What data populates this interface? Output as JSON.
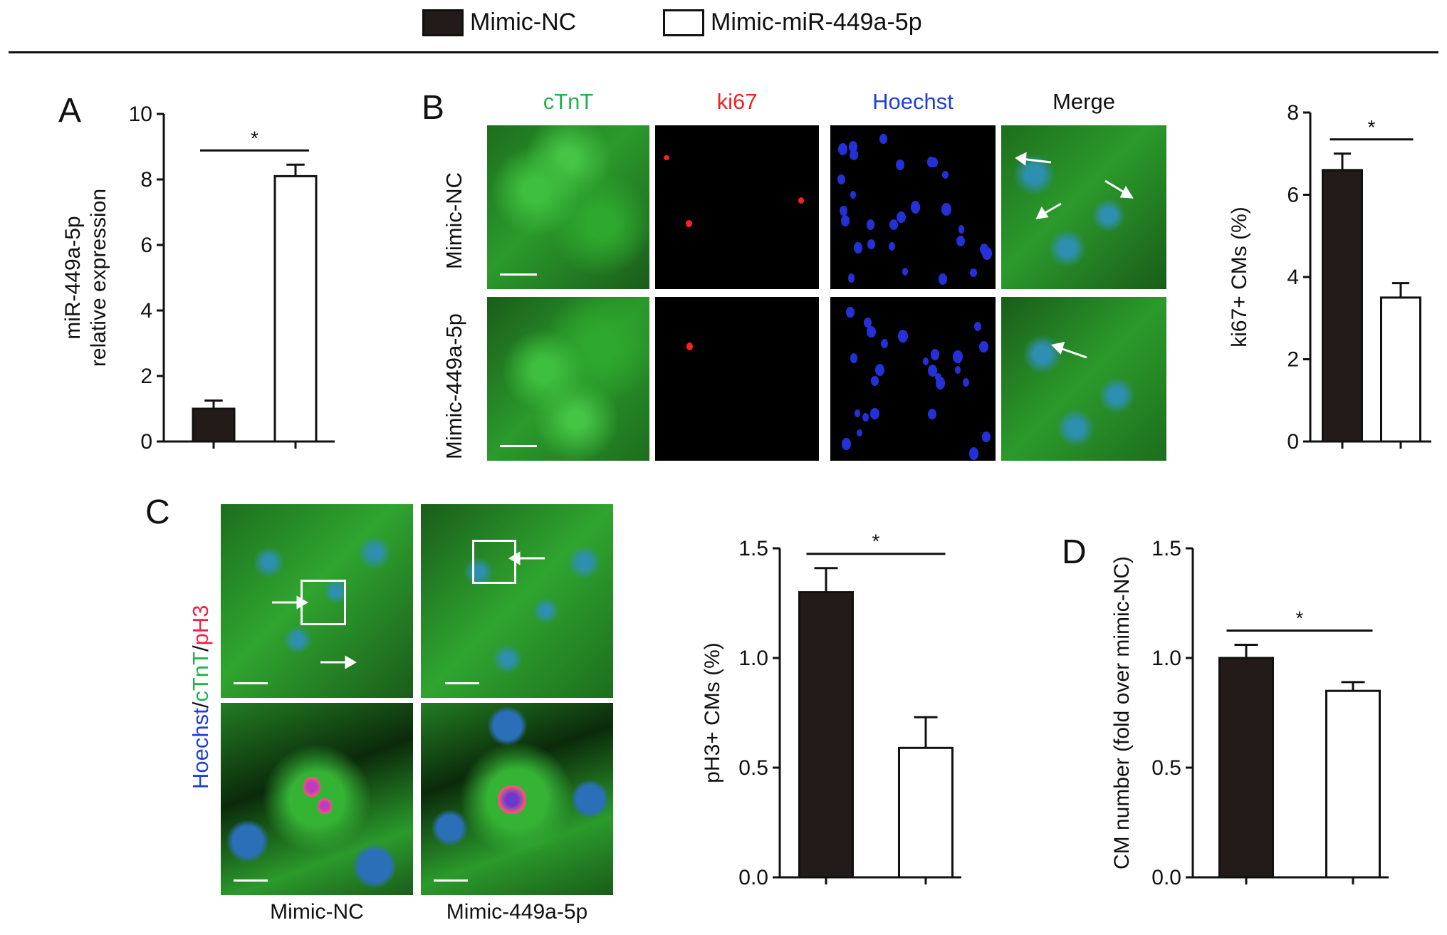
{
  "legend": {
    "items": [
      {
        "label": "Mimic-NC",
        "color": "#231a1a"
      },
      {
        "label": "Mimic-miR-449a-5p",
        "color": "#ffffff"
      }
    ]
  },
  "panels": {
    "A": {
      "letter": "A"
    },
    "B": {
      "letter": "B",
      "columns": [
        "cTnT",
        "ki67",
        "Hoechst",
        "Merge"
      ],
      "column_colors": [
        "#22b14c",
        "#ee2222",
        "#1f3fd6",
        "#111111"
      ],
      "rows": [
        "Mimic-NC",
        "Mimic-449a-5p"
      ]
    },
    "C": {
      "letter": "C",
      "stain_label_parts": [
        {
          "text": "Hoechst",
          "color": "#1f3fd6"
        },
        {
          "text": "/",
          "color": "#111111"
        },
        {
          "text": "cTnT",
          "color": "#22b14c"
        },
        {
          "text": "/",
          "color": "#111111"
        },
        {
          "text": "pH3",
          "color": "#ee2244"
        }
      ],
      "captions": [
        "Mimic-NC",
        "Mimic-449a-5p"
      ]
    },
    "D": {
      "letter": "D"
    }
  },
  "chart_data": [
    {
      "id": "A",
      "type": "bar",
      "categories": [
        "Mimic-NC",
        "Mimic-miR-449a-5p"
      ],
      "values": [
        1.0,
        8.1
      ],
      "errors": [
        0.25,
        0.35
      ],
      "colors": [
        "#231a1a",
        "#ffffff"
      ],
      "ylabel": [
        "miR-449a-5p",
        "relative expression"
      ],
      "ylim": [
        0,
        10
      ],
      "yticks": [
        0,
        2,
        4,
        6,
        8,
        10
      ],
      "significance": "*"
    },
    {
      "id": "B",
      "type": "bar",
      "categories": [
        "Mimic-NC",
        "Mimic-miR-449a-5p"
      ],
      "values": [
        6.6,
        3.5
      ],
      "errors": [
        0.4,
        0.35
      ],
      "colors": [
        "#231a1a",
        "#ffffff"
      ],
      "ylabel": [
        "ki67+ CMs (%)"
      ],
      "ylim": [
        0,
        8
      ],
      "yticks": [
        0,
        2,
        4,
        6,
        8
      ],
      "significance": "*"
    },
    {
      "id": "C",
      "type": "bar",
      "categories": [
        "Mimic-NC",
        "Mimic-miR-449a-5p"
      ],
      "values": [
        1.3,
        0.59
      ],
      "errors": [
        0.11,
        0.14
      ],
      "colors": [
        "#231a1a",
        "#ffffff"
      ],
      "ylabel": [
        "pH3+ CMs (%)"
      ],
      "ylim": [
        0,
        1.5
      ],
      "yticks": [
        "0.0",
        "0.5",
        "1.0",
        "1.5"
      ],
      "significance": "*"
    },
    {
      "id": "D",
      "type": "bar",
      "categories": [
        "Mimic-NC",
        "Mimic-miR-449a-5p"
      ],
      "values": [
        1.0,
        0.85
      ],
      "errors": [
        0.06,
        0.04
      ],
      "colors": [
        "#231a1a",
        "#ffffff"
      ],
      "ylabel": [
        "CM number (fold over mimic-NC)"
      ],
      "ylim": [
        0,
        1.5
      ],
      "yticks": [
        "0.0",
        "0.5",
        "1.0",
        "1.5"
      ],
      "significance": "*"
    }
  ]
}
